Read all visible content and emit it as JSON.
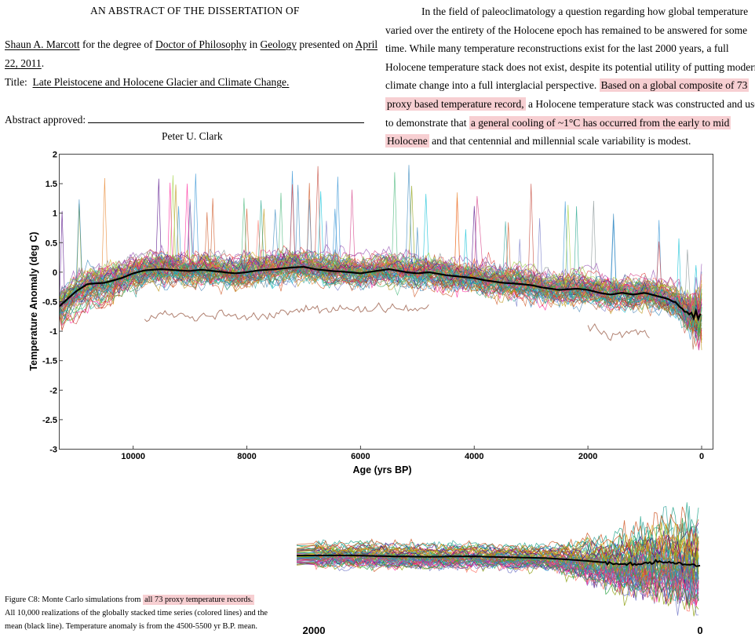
{
  "document": {
    "header": "AN ABSTRACT OF THE DISSERTATION OF",
    "author_line": {
      "author": "Shaun A. Marcott",
      "for_degree_of": "for the degree of",
      "degree": "Doctor of Philosophy",
      "in": "in",
      "field": "Geology",
      "presented_on": "presented on",
      "date_part1": "April",
      "date_part2": "22, 2011",
      "date_end": "."
    },
    "title_label": "Title:",
    "title_value": "Late Pleistocene and Holocene Glacier and Climate Change.",
    "abstract_approved_label": "Abstract approved:",
    "advisor": "Peter U. Clark",
    "abstract_lines": [
      {
        "parts": [
          {
            "t": "In the field of paleoclimatology a question regarding how global temperature"
          }
        ]
      },
      {
        "parts": [
          {
            "t": "varied over the entirety of the Holocene epoch has remained to be answered for some"
          }
        ]
      },
      {
        "parts": [
          {
            "t": "time.  While many temperature reconstructions exist for the last 2000 years, a full"
          }
        ]
      },
      {
        "parts": [
          {
            "t": "Holocene temperature stack does not exist, despite its potential utility of putting modern"
          }
        ]
      },
      {
        "parts": [
          {
            "t": "climate change into a full interglacial perspective. "
          },
          {
            "t": "Based on a global composite of 73",
            "hl": true
          }
        ]
      },
      {
        "parts": [
          {
            "t": "proxy based temperature record,",
            "hl": true
          },
          {
            "t": " a Holocene temperature stack was constructed and used"
          }
        ]
      },
      {
        "parts": [
          {
            "t": "to demonstrate that "
          },
          {
            "t": "a general cooling of ~1°C has occurred from the early to mid",
            "hl": true
          }
        ]
      },
      {
        "parts": [
          {
            "t": "Holocene",
            "hl": true
          },
          {
            "t": " and that centennial and millennial scale variability is modest."
          }
        ]
      }
    ],
    "caption_lines": [
      {
        "parts": [
          {
            "t": "Figure C8: Monte Carlo simulations from "
          },
          {
            "t": "all 73 proxy temperature records.",
            "hl": true
          }
        ]
      },
      {
        "parts": [
          {
            "t": "All 10,000 realizations of the globally stacked time series (colored lines) and the"
          }
        ]
      },
      {
        "parts": [
          {
            "t": "mean (black line).  Temperature anomaly is from the 4500-5500 yr B.P. mean."
          }
        ]
      }
    ],
    "highlight_color": "#f7cfd2"
  },
  "chart_data": [
    {
      "type": "line",
      "title": "",
      "xlabel": "Age (yrs BP)",
      "ylabel": "Temperature Anomaly (deg C)",
      "xlim": [
        11300,
        0
      ],
      "ylim": [
        -3,
        2
      ],
      "x_ticks": [
        10000,
        8000,
        6000,
        4000,
        2000,
        0
      ],
      "y_ticks": [
        2,
        1.5,
        1,
        0.5,
        0,
        -0.5,
        -1,
        -1.5,
        -2,
        -2.5,
        -3
      ],
      "grid": false,
      "ensemble_note": "10,000 Monte Carlo realizations drawn as colored lines",
      "series": [
        {
          "color": "#000000",
          "x": [
            11300,
            11000,
            10800,
            10500,
            10200,
            10000,
            9800,
            9500,
            9200,
            9000,
            8800,
            8500,
            8200,
            8000,
            7800,
            7500,
            7200,
            7000,
            6800,
            6500,
            6200,
            6000,
            5800,
            5500,
            5200,
            5000,
            4800,
            4500,
            4200,
            4000,
            3800,
            3500,
            3200,
            3000,
            2800,
            2500,
            2200,
            2000,
            1800,
            1600,
            1400,
            1200,
            1000,
            800,
            600,
            400,
            300,
            200,
            150,
            100,
            50,
            0
          ],
          "values": [
            -0.58,
            -0.32,
            -0.2,
            -0.18,
            -0.1,
            -0.02,
            0.03,
            0.05,
            0.03,
            0.02,
            0.04,
            0.01,
            -0.02,
            0.0,
            0.03,
            0.05,
            0.08,
            0.09,
            0.05,
            0.02,
            0.0,
            -0.02,
            0.01,
            0.05,
            0.0,
            -0.02,
            0.0,
            -0.05,
            -0.08,
            -0.1,
            -0.14,
            -0.18,
            -0.2,
            -0.22,
            -0.26,
            -0.3,
            -0.28,
            -0.3,
            -0.35,
            -0.38,
            -0.35,
            -0.38,
            -0.35,
            -0.4,
            -0.45,
            -0.55,
            -0.65,
            -0.7,
            -0.75,
            -0.68,
            -0.8,
            -0.7
          ]
        },
        {
          "color": "#b08070",
          "x": [
            9800,
            9500,
            9200,
            9000,
            8500,
            8000,
            7500,
            7000,
            6500,
            6000,
            5500,
            5000,
            4800
          ],
          "values": [
            -0.82,
            -0.72,
            -0.7,
            -0.78,
            -0.72,
            -0.76,
            -0.7,
            -0.64,
            -0.62,
            -0.66,
            -0.58,
            -0.62,
            -0.6
          ]
        },
        {
          "color": "#b08070",
          "x": [
            2000,
            1800,
            1600,
            1400,
            1200,
            1000,
            900
          ],
          "values": [
            -0.92,
            -1.0,
            -1.12,
            -1.02,
            -1.0,
            -1.04,
            -1.1
          ]
        }
      ]
    },
    {
      "type": "line",
      "title": "",
      "xlabel": "",
      "ylabel": "",
      "x_ticks": [
        2000,
        0
      ],
      "grid": false,
      "series": [
        {
          "color": "#000000",
          "x": [
            2000,
            1800,
            1600,
            1400,
            1200,
            1000,
            800,
            600,
            400,
            300,
            200,
            100,
            0
          ],
          "values": [
            -0.3,
            -0.3,
            -0.32,
            -0.33,
            -0.32,
            -0.34,
            -0.36,
            -0.42,
            -0.5,
            -0.48,
            -0.45,
            -0.5,
            -0.52
          ]
        }
      ]
    }
  ]
}
